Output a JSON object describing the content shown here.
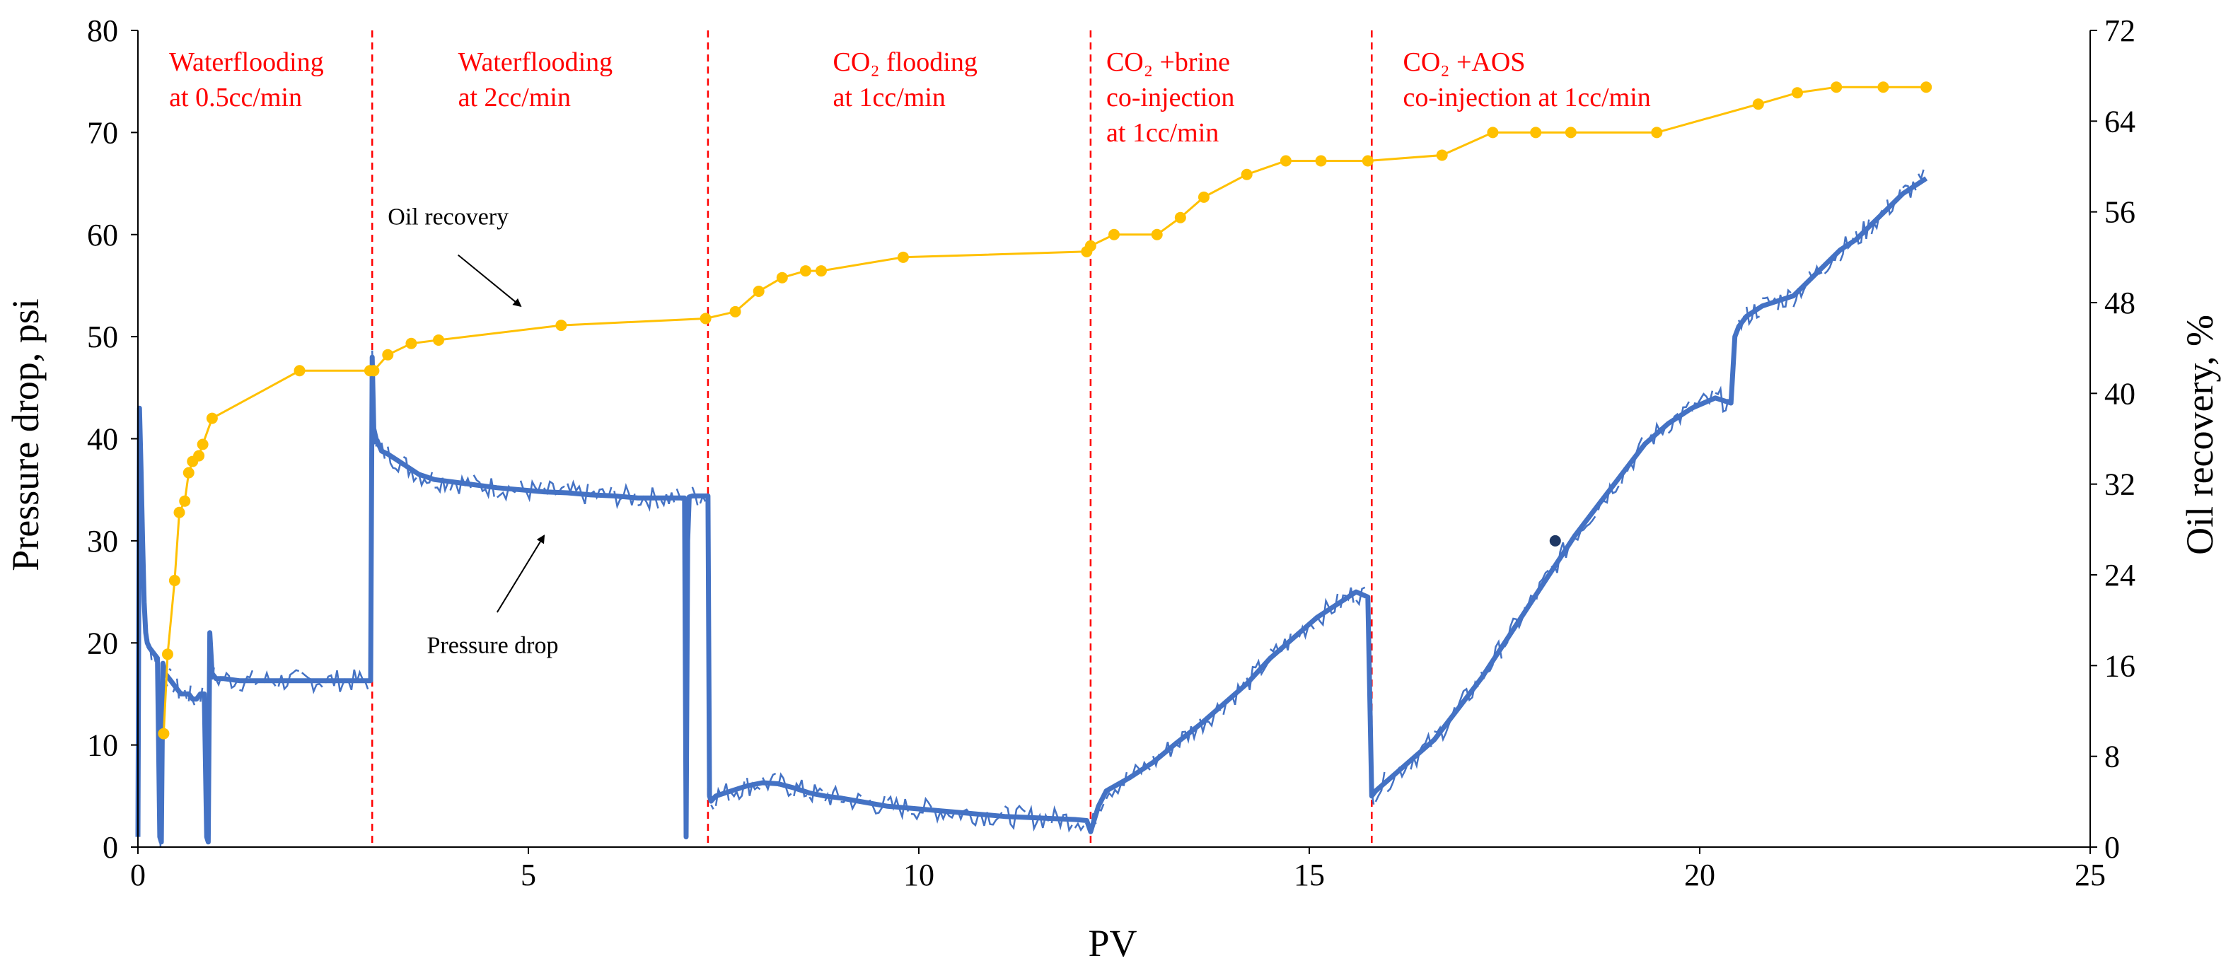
{
  "chart_data": {
    "type": "line",
    "xlabel": "PV",
    "ylabel": "Pressure drop, psi",
    "y2label": "Oil recovery, %",
    "xlim": [
      0,
      25
    ],
    "ylim": [
      0,
      80
    ],
    "y2lim": [
      0,
      72
    ],
    "xticks": [
      "0",
      "5",
      "10",
      "15",
      "20",
      "25"
    ],
    "yticks": [
      "0",
      "10",
      "20",
      "30",
      "40",
      "50",
      "60",
      "70",
      "80"
    ],
    "y2ticks": [
      "0",
      "8",
      "16",
      "24",
      "32",
      "40",
      "48",
      "56",
      "64",
      "72"
    ],
    "colors": {
      "pressure": "#4472c4",
      "recovery": "#ffc000",
      "marker": "#ffc000",
      "divider": "#ff0000",
      "phase_text": "#ff0000"
    },
    "phase_boundaries": [
      3.0,
      7.3,
      12.2,
      15.8
    ],
    "phases": [
      {
        "x": 0.4,
        "lines": [
          "Waterflooding",
          "at 0.5cc/min"
        ]
      },
      {
        "x": 4.1,
        "lines": [
          "Waterflooding",
          "at 2cc/min"
        ]
      },
      {
        "x": 8.9,
        "lines": [
          "CO₂ flooding",
          "at 1cc/min"
        ]
      },
      {
        "x": 12.4,
        "lines": [
          "CO₂ +brine",
          "co-injection",
          "at 1cc/min"
        ]
      },
      {
        "x": 16.2,
        "lines": [
          "CO₂ +AOS",
          "co-injection at 1cc/min"
        ]
      }
    ],
    "annotations": [
      {
        "text": "Oil recovery",
        "x": 3.2,
        "y": 61,
        "arrow_to": [
          4.9,
          53
        ]
      },
      {
        "text": "Pressure drop",
        "x": 3.7,
        "y": 19,
        "arrow_to": [
          5.2,
          30.5
        ]
      }
    ],
    "series": [
      {
        "name": "Oil recovery",
        "axis": "right",
        "x": [
          0.33,
          0.38,
          0.47,
          0.53,
          0.6,
          0.65,
          0.7,
          0.78,
          0.83,
          0.95,
          2.07,
          2.97,
          3.02,
          3.2,
          3.5,
          3.85,
          5.42,
          7.27,
          7.65,
          7.95,
          8.25,
          8.55,
          8.75,
          9.8,
          12.15,
          12.2,
          12.5,
          13.05,
          13.35,
          13.65,
          14.2,
          14.7,
          15.15,
          15.75,
          16.7,
          17.35,
          17.9,
          18.35,
          19.45,
          20.75,
          21.25,
          21.75,
          22.35,
          22.9
        ],
        "y": [
          10,
          17,
          23.5,
          29.5,
          30.5,
          33,
          34,
          34.5,
          35.5,
          37.8,
          42,
          42,
          42,
          43.4,
          44.4,
          44.7,
          46,
          46.6,
          47.2,
          49,
          50.2,
          50.8,
          50.8,
          52,
          52.5,
          53,
          54,
          54,
          55.5,
          57.3,
          59.3,
          60.5,
          60.5,
          60.5,
          61,
          63,
          63,
          63,
          63,
          65.5,
          66.5,
          67,
          67,
          67
        ]
      },
      {
        "name": "Pressure drop",
        "axis": "left",
        "x": [
          0,
          0.02,
          0.04,
          0.06,
          0.08,
          0.1,
          0.12,
          0.15,
          0.2,
          0.25,
          0.28,
          0.3,
          0.32,
          0.35,
          0.4,
          0.45,
          0.5,
          0.55,
          0.6,
          0.65,
          0.7,
          0.75,
          0.8,
          0.85,
          0.88,
          0.9,
          0.92,
          0.95,
          1.0,
          1.1,
          1.3,
          1.5,
          1.8,
          2.1,
          2.4,
          2.7,
          2.98,
          3.0,
          3.02,
          3.05,
          3.08,
          3.12,
          3.2,
          3.4,
          3.6,
          3.8,
          4.0,
          4.3,
          4.6,
          4.9,
          5.2,
          5.5,
          5.8,
          6.1,
          6.4,
          6.7,
          6.9,
          7.0,
          7.02,
          7.04,
          7.06,
          7.1,
          7.2,
          7.3,
          7.32,
          7.34,
          7.4,
          7.6,
          7.8,
          8.0,
          8.2,
          8.4,
          8.6,
          8.8,
          9.0,
          9.3,
          9.6,
          9.9,
          10.2,
          10.5,
          10.8,
          11.1,
          11.4,
          11.7,
          12.0,
          12.15,
          12.2,
          12.3,
          12.4,
          12.7,
          13.0,
          13.3,
          13.6,
          13.9,
          14.2,
          14.5,
          14.8,
          15.1,
          15.4,
          15.6,
          15.75,
          15.8,
          15.85,
          16.0,
          16.3,
          16.6,
          16.9,
          17.2,
          17.5,
          17.8,
          18.1,
          18.4,
          18.7,
          19.0,
          19.3,
          19.6,
          19.9,
          20.2,
          20.4,
          20.45,
          20.5,
          20.6,
          20.8,
          21.0,
          21.2,
          21.4,
          21.6,
          21.8,
          22.0,
          22.2,
          22.4,
          22.6,
          22.8,
          22.9
        ],
        "y": [
          1,
          43,
          37,
          30,
          24,
          21,
          20,
          19.5,
          19,
          18.5,
          1,
          0.5,
          18,
          17,
          16.5,
          16,
          15.5,
          15,
          15,
          15,
          14.5,
          14.5,
          15,
          15,
          1,
          0.5,
          21,
          17,
          16.5,
          16.5,
          16.3,
          16.3,
          16.3,
          16.3,
          16.3,
          16.3,
          16.3,
          48,
          41,
          40,
          39.5,
          38.8,
          38.5,
          37.5,
          36.5,
          36,
          35.8,
          35.5,
          35.2,
          35,
          34.8,
          34.7,
          34.5,
          34.4,
          34.2,
          34.2,
          34.2,
          34.2,
          1,
          30,
          34.3,
          34.4,
          34.4,
          34.4,
          5,
          4.5,
          5,
          5.5,
          6,
          6.3,
          6.2,
          5.8,
          5.3,
          5,
          4.8,
          4.4,
          4,
          3.8,
          3.6,
          3.4,
          3.2,
          3,
          2.9,
          2.8,
          2.7,
          2.6,
          1.5,
          4,
          5.5,
          6.8,
          8.3,
          10.2,
          12,
          14,
          16,
          18.5,
          20.5,
          22.5,
          24,
          25,
          24.5,
          5,
          5.5,
          6.5,
          8.5,
          10.5,
          13.5,
          16.5,
          20,
          23.5,
          27,
          30.5,
          33.5,
          36.5,
          39.5,
          41.5,
          43,
          44,
          43.5,
          50,
          51,
          52,
          53,
          53.5,
          54,
          55.5,
          57,
          58.5,
          59.5,
          61,
          62.5,
          64,
          65,
          65.5
        ]
      }
    ],
    "highlight_point": {
      "x": 18.15,
      "y": 30
    }
  }
}
